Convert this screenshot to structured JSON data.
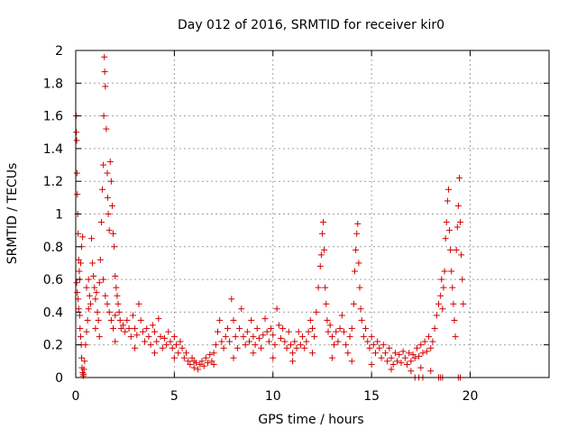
{
  "chart_data": {
    "type": "scatter",
    "title": "Day 012 of 2016, SRMTID for receiver kir0",
    "xlabel": "GPS time / hours",
    "ylabel": "SRMTID / TECUs",
    "xlim": [
      0,
      24
    ],
    "ylim": [
      0,
      2
    ],
    "grid": true,
    "marker": "+",
    "marker_color": "#dd0000",
    "x_ticks": [
      {
        "value": 0,
        "label": "0"
      },
      {
        "value": 5,
        "label": "5"
      },
      {
        "value": 10,
        "label": "10"
      },
      {
        "value": 15,
        "label": "15"
      },
      {
        "value": 20,
        "label": "20"
      }
    ],
    "y_ticks": [
      {
        "value": 0,
        "label": "0"
      },
      {
        "value": 0.2,
        "label": "0.2"
      },
      {
        "value": 0.4,
        "label": "0.4"
      },
      {
        "value": 0.6,
        "label": "0.6"
      },
      {
        "value": 0.8,
        "label": "0.8"
      },
      {
        "value": 1.0,
        "label": "1"
      },
      {
        "value": 1.2,
        "label": "1.2"
      },
      {
        "value": 1.4,
        "label": "1.4"
      },
      {
        "value": 1.6,
        "label": "1.6"
      },
      {
        "value": 1.8,
        "label": "1.8"
      },
      {
        "value": 2.0,
        "label": "2"
      }
    ],
    "series": [
      {
        "name": "kir0",
        "points": [
          [
            0.02,
            1.6
          ],
          [
            0.03,
            1.5
          ],
          [
            0.05,
            1.45
          ],
          [
            0.06,
            1.25
          ],
          [
            0.08,
            1.12
          ],
          [
            0.1,
            1.0
          ],
          [
            0.12,
            0.88
          ],
          [
            0.15,
            0.72
          ],
          [
            0.18,
            0.65
          ],
          [
            0.2,
            0.6
          ],
          [
            0.05,
            0.58
          ],
          [
            0.08,
            0.52
          ],
          [
            0.12,
            0.48
          ],
          [
            0.15,
            0.42
          ],
          [
            0.2,
            0.38
          ],
          [
            0.22,
            0.3
          ],
          [
            0.25,
            0.25
          ],
          [
            0.28,
            0.2
          ],
          [
            0.3,
            0.12
          ],
          [
            0.32,
            0.06
          ],
          [
            0.35,
            0.03
          ],
          [
            0.38,
            0.01
          ],
          [
            0.4,
            0.02
          ],
          [
            0.42,
            0.05
          ],
          [
            0.45,
            0.1
          ],
          [
            0.5,
            0.2
          ],
          [
            0.55,
            0.28
          ],
          [
            0.6,
            0.35
          ],
          [
            0.65,
            0.42
          ],
          [
            0.7,
            0.5
          ],
          [
            0.25,
            0.7
          ],
          [
            0.3,
            0.8
          ],
          [
            0.35,
            0.86
          ],
          [
            0.55,
            0.55
          ],
          [
            0.65,
            0.6
          ],
          [
            0.75,
            0.45
          ],
          [
            0.8,
            0.85
          ],
          [
            0.85,
            0.7
          ],
          [
            0.9,
            0.62
          ],
          [
            0.95,
            0.55
          ],
          [
            1.0,
            0.48
          ],
          [
            1.05,
            0.52
          ],
          [
            1.1,
            0.4
          ],
          [
            1.15,
            0.35
          ],
          [
            1.2,
            0.58
          ],
          [
            1.25,
            0.72
          ],
          [
            1.3,
            0.95
          ],
          [
            1.35,
            1.15
          ],
          [
            1.4,
            1.3
          ],
          [
            1.42,
            1.6
          ],
          [
            1.45,
            1.96
          ],
          [
            1.47,
            1.87
          ],
          [
            1.5,
            1.78
          ],
          [
            1.55,
            1.52
          ],
          [
            1.6,
            1.25
          ],
          [
            1.62,
            1.1
          ],
          [
            1.65,
            1.0
          ],
          [
            1.7,
            0.9
          ],
          [
            1.75,
            1.32
          ],
          [
            1.8,
            1.2
          ],
          [
            1.85,
            1.05
          ],
          [
            1.9,
            0.88
          ],
          [
            1.95,
            0.8
          ],
          [
            2.0,
            0.62
          ],
          [
            2.05,
            0.55
          ],
          [
            2.1,
            0.5
          ],
          [
            2.15,
            0.45
          ],
          [
            2.2,
            0.4
          ],
          [
            1.4,
            0.6
          ],
          [
            1.5,
            0.5
          ],
          [
            1.6,
            0.45
          ],
          [
            1.7,
            0.4
          ],
          [
            1.8,
            0.35
          ],
          [
            1.9,
            0.3
          ],
          [
            2.0,
            0.38
          ],
          [
            2.25,
            0.35
          ],
          [
            2.3,
            0.3
          ],
          [
            2.4,
            0.32
          ],
          [
            2.5,
            0.28
          ],
          [
            2.6,
            0.35
          ],
          [
            2.7,
            0.3
          ],
          [
            2.8,
            0.25
          ],
          [
            2.9,
            0.38
          ],
          [
            3.0,
            0.3
          ],
          [
            3.1,
            0.26
          ],
          [
            3.2,
            0.45
          ],
          [
            3.3,
            0.35
          ],
          [
            3.4,
            0.28
          ],
          [
            3.5,
            0.22
          ],
          [
            3.6,
            0.3
          ],
          [
            3.7,
            0.25
          ],
          [
            3.8,
            0.2
          ],
          [
            3.9,
            0.32
          ],
          [
            4.0,
            0.28
          ],
          [
            4.1,
            0.22
          ],
          [
            4.2,
            0.36
          ],
          [
            4.3,
            0.25
          ],
          [
            4.4,
            0.18
          ],
          [
            4.5,
            0.24
          ],
          [
            4.6,
            0.2
          ],
          [
            4.7,
            0.28
          ],
          [
            4.8,
            0.22
          ],
          [
            4.9,
            0.18
          ],
          [
            5.0,
            0.25
          ],
          [
            5.1,
            0.2
          ],
          [
            5.2,
            0.15
          ],
          [
            5.3,
            0.22
          ],
          [
            5.4,
            0.18
          ],
          [
            5.5,
            0.12
          ],
          [
            5.6,
            0.15
          ],
          [
            5.7,
            0.1
          ],
          [
            5.8,
            0.08
          ],
          [
            5.9,
            0.12
          ],
          [
            6.0,
            0.06
          ],
          [
            6.1,
            0.09
          ],
          [
            6.2,
            0.05
          ],
          [
            6.3,
            0.08
          ],
          [
            6.4,
            0.1
          ],
          [
            6.5,
            0.07
          ],
          [
            6.6,
            0.12
          ],
          [
            6.7,
            0.09
          ],
          [
            6.8,
            0.14
          ],
          [
            6.9,
            0.1
          ],
          [
            7.0,
            0.15
          ],
          [
            7.1,
            0.2
          ],
          [
            7.2,
            0.28
          ],
          [
            7.3,
            0.35
          ],
          [
            7.4,
            0.22
          ],
          [
            7.5,
            0.18
          ],
          [
            7.6,
            0.25
          ],
          [
            7.7,
            0.3
          ],
          [
            7.8,
            0.22
          ],
          [
            7.9,
            0.48
          ],
          [
            8.0,
            0.35
          ],
          [
            8.1,
            0.25
          ],
          [
            8.2,
            0.18
          ],
          [
            8.3,
            0.3
          ],
          [
            8.4,
            0.42
          ],
          [
            8.5,
            0.25
          ],
          [
            8.6,
            0.2
          ],
          [
            8.7,
            0.28
          ],
          [
            8.8,
            0.22
          ],
          [
            8.9,
            0.35
          ],
          [
            9.0,
            0.25
          ],
          [
            9.1,
            0.2
          ],
          [
            9.2,
            0.3
          ],
          [
            9.3,
            0.24
          ],
          [
            9.4,
            0.18
          ],
          [
            9.5,
            0.26
          ],
          [
            9.6,
            0.36
          ],
          [
            9.7,
            0.28
          ],
          [
            9.8,
            0.22
          ],
          [
            9.9,
            0.3
          ],
          [
            10.0,
            0.26
          ],
          [
            10.1,
            0.2
          ],
          [
            10.2,
            0.42
          ],
          [
            10.3,
            0.32
          ],
          [
            10.4,
            0.24
          ],
          [
            10.5,
            0.3
          ],
          [
            10.6,
            0.22
          ],
          [
            10.7,
            0.18
          ],
          [
            10.8,
            0.28
          ],
          [
            10.9,
            0.2
          ],
          [
            11.0,
            0.15
          ],
          [
            11.1,
            0.22
          ],
          [
            11.2,
            0.18
          ],
          [
            11.3,
            0.28
          ],
          [
            11.4,
            0.2
          ],
          [
            11.5,
            0.25
          ],
          [
            11.6,
            0.18
          ],
          [
            11.7,
            0.22
          ],
          [
            11.8,
            0.28
          ],
          [
            11.9,
            0.35
          ],
          [
            12.0,
            0.3
          ],
          [
            12.1,
            0.25
          ],
          [
            12.2,
            0.4
          ],
          [
            12.3,
            0.55
          ],
          [
            12.4,
            0.68
          ],
          [
            12.45,
            0.75
          ],
          [
            12.5,
            0.88
          ],
          [
            12.55,
            0.95
          ],
          [
            12.6,
            0.78
          ],
          [
            12.65,
            0.55
          ],
          [
            12.7,
            0.45
          ],
          [
            12.75,
            0.35
          ],
          [
            12.8,
            0.28
          ],
          [
            12.9,
            0.32
          ],
          [
            13.0,
            0.25
          ],
          [
            13.1,
            0.2
          ],
          [
            13.2,
            0.28
          ],
          [
            13.3,
            0.22
          ],
          [
            13.4,
            0.3
          ],
          [
            13.5,
            0.38
          ],
          [
            13.6,
            0.28
          ],
          [
            13.7,
            0.2
          ],
          [
            13.8,
            0.15
          ],
          [
            13.9,
            0.25
          ],
          [
            14.0,
            0.3
          ],
          [
            14.1,
            0.45
          ],
          [
            14.15,
            0.65
          ],
          [
            14.2,
            0.78
          ],
          [
            14.25,
            0.88
          ],
          [
            14.3,
            0.94
          ],
          [
            14.35,
            0.7
          ],
          [
            14.4,
            0.55
          ],
          [
            14.45,
            0.42
          ],
          [
            14.5,
            0.35
          ],
          [
            14.6,
            0.25
          ],
          [
            14.7,
            0.3
          ],
          [
            14.8,
            0.22
          ],
          [
            14.9,
            0.18
          ],
          [
            15.0,
            0.25
          ],
          [
            15.1,
            0.2
          ],
          [
            15.2,
            0.15
          ],
          [
            15.3,
            0.22
          ],
          [
            15.4,
            0.18
          ],
          [
            15.5,
            0.12
          ],
          [
            15.6,
            0.2
          ],
          [
            15.7,
            0.15
          ],
          [
            15.8,
            0.1
          ],
          [
            15.9,
            0.18
          ],
          [
            16.0,
            0.12
          ],
          [
            16.1,
            0.08
          ],
          [
            16.2,
            0.15
          ],
          [
            16.3,
            0.1
          ],
          [
            16.4,
            0.14
          ],
          [
            16.5,
            0.09
          ],
          [
            16.6,
            0.16
          ],
          [
            16.7,
            0.12
          ],
          [
            16.8,
            0.08
          ],
          [
            16.9,
            0.15
          ],
          [
            17.0,
            0.1
          ],
          [
            17.1,
            0.14
          ],
          [
            17.2,
            0.12
          ],
          [
            17.3,
            0.18
          ],
          [
            17.4,
            0.13
          ],
          [
            17.5,
            0.2
          ],
          [
            17.6,
            0.15
          ],
          [
            17.7,
            0.22
          ],
          [
            17.8,
            0.16
          ],
          [
            17.9,
            0.25
          ],
          [
            18.0,
            0.18
          ],
          [
            18.1,
            0.22
          ],
          [
            18.2,
            0.3
          ],
          [
            18.3,
            0.38
          ],
          [
            18.4,
            0.45
          ],
          [
            18.5,
            0.5
          ],
          [
            18.55,
            0.6
          ],
          [
            18.6,
            0.42
          ],
          [
            18.65,
            0.55
          ],
          [
            18.7,
            0.65
          ],
          [
            18.75,
            0.85
          ],
          [
            18.8,
            0.95
          ],
          [
            18.85,
            1.08
          ],
          [
            18.9,
            1.15
          ],
          [
            18.95,
            0.9
          ],
          [
            19.0,
            0.78
          ],
          [
            19.05,
            0.65
          ],
          [
            19.1,
            0.55
          ],
          [
            19.15,
            0.45
          ],
          [
            19.2,
            0.35
          ],
          [
            19.25,
            0.25
          ],
          [
            19.3,
            0.78
          ],
          [
            19.35,
            0.92
          ],
          [
            19.4,
            1.05
          ],
          [
            19.45,
            1.22
          ],
          [
            19.5,
            0.95
          ],
          [
            19.55,
            0.75
          ],
          [
            19.6,
            0.6
          ],
          [
            19.65,
            0.45
          ],
          [
            1.0,
            0.3
          ],
          [
            1.2,
            0.25
          ],
          [
            2.0,
            0.22
          ],
          [
            3.0,
            0.18
          ],
          [
            4.0,
            0.15
          ],
          [
            5.0,
            0.12
          ],
          [
            6.0,
            0.1
          ],
          [
            7.0,
            0.08
          ],
          [
            8.0,
            0.12
          ],
          [
            9.0,
            0.15
          ],
          [
            10.0,
            0.12
          ],
          [
            11.0,
            0.1
          ],
          [
            12.0,
            0.15
          ],
          [
            13.0,
            0.12
          ],
          [
            14.0,
            0.1
          ],
          [
            15.0,
            0.08
          ],
          [
            16.0,
            0.05
          ],
          [
            17.0,
            0.04
          ],
          [
            17.5,
            0.06
          ],
          [
            18.0,
            0.04
          ],
          [
            17.2,
            0.0
          ],
          [
            17.4,
            0.0
          ],
          [
            17.6,
            0.0
          ],
          [
            18.4,
            0.0
          ],
          [
            18.5,
            0.0
          ],
          [
            18.6,
            0.0
          ],
          [
            19.4,
            0.0
          ],
          [
            19.5,
            0.0
          ]
        ]
      }
    ]
  }
}
